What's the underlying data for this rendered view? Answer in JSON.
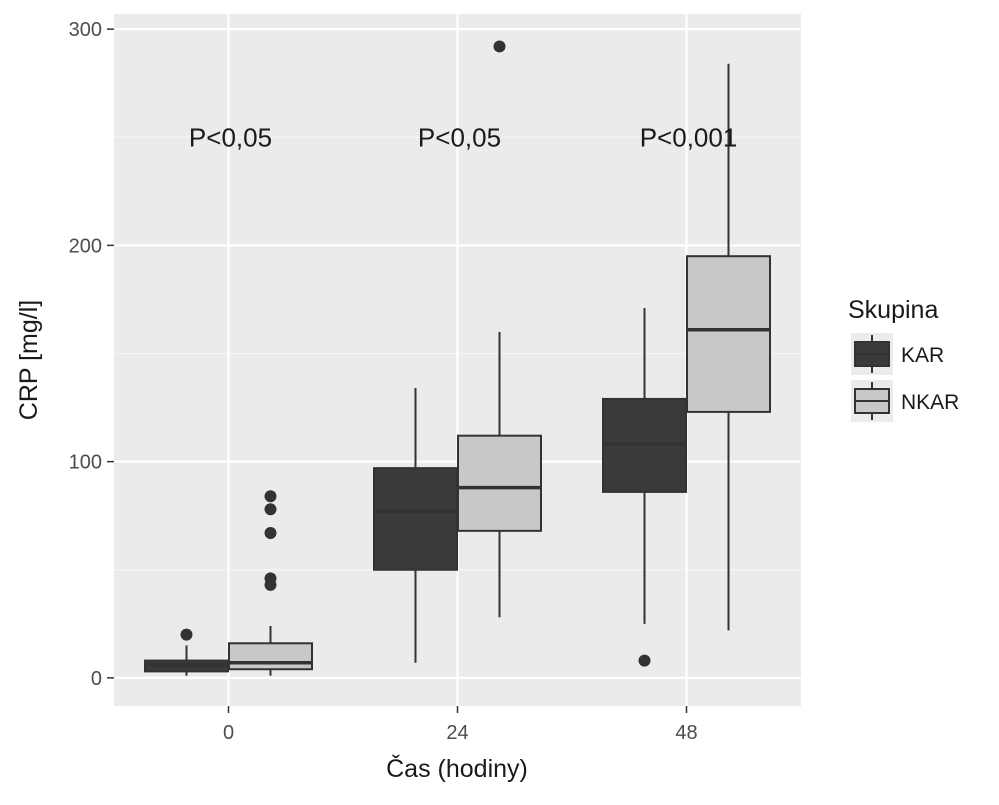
{
  "chart_data": {
    "type": "boxplot",
    "xlabel": "Čas (hodiny)",
    "ylabel": "CRP [mg/l]",
    "categories": [
      "0",
      "24",
      "48"
    ],
    "ylim": [
      -13,
      300
    ],
    "yticks": [
      0,
      100,
      200,
      300
    ],
    "grid": true,
    "legend": {
      "title": "Skupina",
      "position": "right"
    },
    "series": [
      {
        "name": "KAR",
        "color": "#3a3a3a",
        "boxes": [
          {
            "category": "0",
            "whisker_low": 1,
            "q1": 3,
            "median": 6,
            "q3": 8,
            "whisker_high": 15,
            "outliers": [
              20
            ]
          },
          {
            "category": "24",
            "whisker_low": 7,
            "q1": 50,
            "median": 77,
            "q3": 97,
            "whisker_high": 134,
            "outliers": []
          },
          {
            "category": "48",
            "whisker_low": 25,
            "q1": 86,
            "median": 108,
            "q3": 129,
            "whisker_high": 171,
            "outliers": [
              8
            ]
          }
        ]
      },
      {
        "name": "NKAR",
        "color": "#c8c8c8",
        "boxes": [
          {
            "category": "0",
            "whisker_low": 1,
            "q1": 4,
            "median": 7,
            "q3": 16,
            "whisker_high": 24,
            "outliers": [
              43,
              46,
              67,
              78,
              84
            ]
          },
          {
            "category": "24",
            "whisker_low": 28,
            "q1": 68,
            "median": 88,
            "q3": 112,
            "whisker_high": 160,
            "outliers": [
              292
            ]
          },
          {
            "category": "48",
            "whisker_low": 22,
            "q1": 123,
            "median": 161,
            "q3": 195,
            "whisker_high": 284,
            "outliers": []
          }
        ]
      }
    ],
    "annotations": [
      {
        "category": "0",
        "y": 250,
        "text": "P<0,05"
      },
      {
        "category": "24",
        "y": 250,
        "text": "P<0,05"
      },
      {
        "category": "48",
        "y": 250,
        "text": "P<0,001"
      }
    ]
  }
}
